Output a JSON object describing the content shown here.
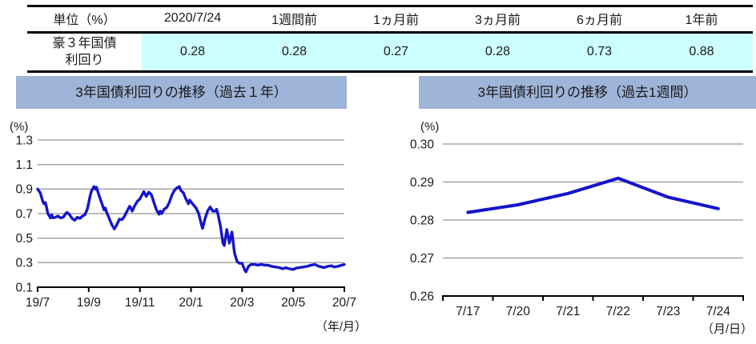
{
  "colors": {
    "table_highlight": "#CCFFFF",
    "header_bar": "#9EB4D8",
    "gridline": "#A6A6A6",
    "axis": "#000000",
    "line_blue": "#1414CC",
    "text": "#1A1A1A"
  },
  "table": {
    "headers": [
      "単位（%）",
      "2020/7/24",
      "1週間前",
      "1ヵ月前",
      "3ヵ月前",
      "6ヵ月前",
      "1年前"
    ],
    "row": {
      "label": "豪３年国債\n利回り",
      "values": [
        "0.28",
        "0.28",
        "0.27",
        "0.28",
        "0.73",
        "0.88"
      ]
    }
  },
  "chart_data": [
    {
      "id": "yield-past-1-year",
      "type": "line",
      "title": "3年国債利回りの推移（過去１年）",
      "unit_label": "(%)",
      "xaxis_label": "（年/月）",
      "x_range": [
        0,
        12
      ],
      "x_ticks": [
        0,
        2,
        4,
        6,
        8,
        10,
        12
      ],
      "x_tick_labels": [
        "19/7",
        "19/9",
        "19/11",
        "20/1",
        "20/3",
        "20/5",
        "20/7"
      ],
      "ylim": [
        0.1,
        1.3
      ],
      "yticks": [
        0.1,
        0.3,
        0.5,
        0.7,
        0.9,
        1.1,
        1.3
      ],
      "ytick_labels": [
        "0.1",
        "0.3",
        "0.5",
        "0.7",
        "0.9",
        "1.1",
        "1.3"
      ],
      "grid": true,
      "legend": "none",
      "line_color": "#1414CC",
      "series": [
        {
          "name": "豪3年国債利回り",
          "x_unit": "months-since-2019-07",
          "points": [
            [
              0,
              0.9
            ],
            [
              0.1,
              0.87
            ],
            [
              0.2,
              0.8
            ],
            [
              0.25,
              0.78
            ],
            [
              0.3,
              0.79
            ],
            [
              0.35,
              0.75
            ],
            [
              0.4,
              0.7
            ],
            [
              0.5,
              0.665
            ],
            [
              0.55,
              0.69
            ],
            [
              0.6,
              0.665
            ],
            [
              0.7,
              0.67
            ],
            [
              0.8,
              0.68
            ],
            [
              0.9,
              0.665
            ],
            [
              1.0,
              0.67
            ],
            [
              1.1,
              0.7
            ],
            [
              1.15,
              0.71
            ],
            [
              1.25,
              0.69
            ],
            [
              1.35,
              0.66
            ],
            [
              1.45,
              0.645
            ],
            [
              1.55,
              0.67
            ],
            [
              1.65,
              0.66
            ],
            [
              1.75,
              0.68
            ],
            [
              1.85,
              0.69
            ],
            [
              1.95,
              0.74
            ],
            [
              2.0,
              0.79
            ],
            [
              2.05,
              0.84
            ],
            [
              2.1,
              0.88
            ],
            [
              2.2,
              0.92
            ],
            [
              2.25,
              0.9
            ],
            [
              2.3,
              0.915
            ],
            [
              2.4,
              0.85
            ],
            [
              2.5,
              0.79
            ],
            [
              2.55,
              0.76
            ],
            [
              2.6,
              0.73
            ],
            [
              2.65,
              0.745
            ],
            [
              2.7,
              0.71
            ],
            [
              2.8,
              0.66
            ],
            [
              2.9,
              0.61
            ],
            [
              3.0,
              0.575
            ],
            [
              3.1,
              0.61
            ],
            [
              3.2,
              0.655
            ],
            [
              3.3,
              0.65
            ],
            [
              3.4,
              0.68
            ],
            [
              3.5,
              0.72
            ],
            [
              3.6,
              0.76
            ],
            [
              3.65,
              0.745
            ],
            [
              3.7,
              0.72
            ],
            [
              3.8,
              0.765
            ],
            [
              3.9,
              0.8
            ],
            [
              4.0,
              0.82
            ],
            [
              4.1,
              0.86
            ],
            [
              4.15,
              0.88
            ],
            [
              4.25,
              0.84
            ],
            [
              4.35,
              0.875
            ],
            [
              4.45,
              0.855
            ],
            [
              4.55,
              0.79
            ],
            [
              4.65,
              0.73
            ],
            [
              4.75,
              0.695
            ],
            [
              4.8,
              0.72
            ],
            [
              4.85,
              0.7
            ],
            [
              4.95,
              0.735
            ],
            [
              5.05,
              0.75
            ],
            [
              5.15,
              0.79
            ],
            [
              5.25,
              0.85
            ],
            [
              5.35,
              0.89
            ],
            [
              5.45,
              0.91
            ],
            [
              5.55,
              0.92
            ],
            [
              5.6,
              0.89
            ],
            [
              5.7,
              0.87
            ],
            [
              5.8,
              0.82
            ],
            [
              5.9,
              0.78
            ],
            [
              5.95,
              0.81
            ],
            [
              6.0,
              0.795
            ],
            [
              6.1,
              0.77
            ],
            [
              6.2,
              0.745
            ],
            [
              6.3,
              0.7
            ],
            [
              6.4,
              0.615
            ],
            [
              6.45,
              0.58
            ],
            [
              6.55,
              0.66
            ],
            [
              6.65,
              0.72
            ],
            [
              6.75,
              0.755
            ],
            [
              6.85,
              0.72
            ],
            [
              6.95,
              0.72
            ],
            [
              7.0,
              0.735
            ],
            [
              7.05,
              0.7
            ],
            [
              7.15,
              0.6
            ],
            [
              7.25,
              0.46
            ],
            [
              7.3,
              0.44
            ],
            [
              7.4,
              0.57
            ],
            [
              7.5,
              0.46
            ],
            [
              7.6,
              0.55
            ],
            [
              7.7,
              0.38
            ],
            [
              7.8,
              0.31
            ],
            [
              7.9,
              0.295
            ],
            [
              8.0,
              0.295
            ],
            [
              8.1,
              0.24
            ],
            [
              8.15,
              0.225
            ],
            [
              8.25,
              0.27
            ],
            [
              8.35,
              0.285
            ],
            [
              8.5,
              0.285
            ],
            [
              8.6,
              0.28
            ],
            [
              8.75,
              0.285
            ],
            [
              8.9,
              0.28
            ],
            [
              9.0,
              0.28
            ],
            [
              9.15,
              0.27
            ],
            [
              9.3,
              0.265
            ],
            [
              9.45,
              0.26
            ],
            [
              9.6,
              0.25
            ],
            [
              9.7,
              0.26
            ],
            [
              9.85,
              0.25
            ],
            [
              10.0,
              0.245
            ],
            [
              10.1,
              0.255
            ],
            [
              10.25,
              0.26
            ],
            [
              10.4,
              0.265
            ],
            [
              10.55,
              0.27
            ],
            [
              10.7,
              0.28
            ],
            [
              10.85,
              0.285
            ],
            [
              11.0,
              0.27
            ],
            [
              11.1,
              0.265
            ],
            [
              11.2,
              0.26
            ],
            [
              11.35,
              0.27
            ],
            [
              11.5,
              0.275
            ],
            [
              11.6,
              0.265
            ],
            [
              11.75,
              0.27
            ],
            [
              11.9,
              0.28
            ],
            [
              12.0,
              0.285
            ]
          ]
        }
      ]
    },
    {
      "id": "yield-past-1-week",
      "type": "line",
      "title": "3年国債利回りの推移（過去1週間）",
      "unit_label": "(%)",
      "xaxis_label": "（月/日）",
      "categories": [
        "7/17",
        "7/20",
        "7/21",
        "7/22",
        "7/23",
        "7/24"
      ],
      "values": [
        0.282,
        0.284,
        0.287,
        0.291,
        0.286,
        0.283
      ],
      "ylim": [
        0.26,
        0.3
      ],
      "yticks": [
        0.26,
        0.27,
        0.28,
        0.29,
        0.3
      ],
      "ytick_labels": [
        "0.26",
        "0.27",
        "0.28",
        "0.29",
        "0.30"
      ],
      "grid": true,
      "legend": "none",
      "line_color": "#1414CC",
      "series_name": "豪3年国債利回り"
    }
  ]
}
